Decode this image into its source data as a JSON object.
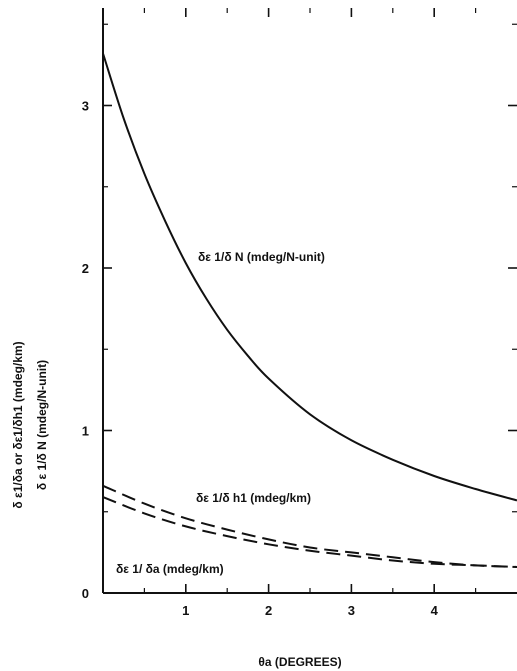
{
  "chart_data": {
    "type": "line",
    "xlabel": "θa (DEGREES)",
    "ylabel_lines": [
      "δ ε1/δa  or  δε1/δh1  (mdeg/km)",
      "δ ε 1/δ N  (mdeg/N-unit)"
    ],
    "xlim": [
      0,
      5
    ],
    "ylim": [
      0,
      3.6
    ],
    "x_ticks": [
      1,
      2,
      3,
      4
    ],
    "x_tick_labels": [
      "1",
      "2",
      "3",
      "4"
    ],
    "y_ticks": [
      0,
      1,
      2,
      3
    ],
    "y_tick_labels": [
      "0",
      "1",
      "2",
      "3"
    ],
    "grid": false,
    "legend": "none",
    "series": [
      {
        "name": "δε 1/δ N   (mdeg/N-unit)",
        "style": "solid",
        "x": [
          0,
          0.25,
          0.5,
          0.75,
          1,
          1.25,
          1.5,
          1.75,
          2,
          2.5,
          3,
          3.5,
          4,
          4.5,
          5
        ],
        "y": [
          3.32,
          2.92,
          2.58,
          2.29,
          2.03,
          1.81,
          1.62,
          1.46,
          1.32,
          1.1,
          0.94,
          0.82,
          0.72,
          0.64,
          0.57
        ]
      },
      {
        "name": "δε 1/δ h1   (mdeg/km)",
        "style": "dashed",
        "x": [
          0,
          0.5,
          1,
          1.5,
          2,
          2.5,
          3,
          3.5,
          4,
          4.5,
          5
        ],
        "y": [
          0.66,
          0.55,
          0.46,
          0.39,
          0.33,
          0.28,
          0.25,
          0.22,
          0.19,
          0.17,
          0.16
        ]
      },
      {
        "name": "δε 1/ δa   (mdeg/km)",
        "style": "dashed",
        "x": [
          0,
          0.5,
          1,
          1.5,
          2,
          2.5,
          3,
          3.5,
          4,
          4.5,
          5
        ],
        "y": [
          0.59,
          0.49,
          0.41,
          0.35,
          0.3,
          0.26,
          0.23,
          0.2,
          0.18,
          0.17,
          0.16
        ]
      }
    ]
  }
}
